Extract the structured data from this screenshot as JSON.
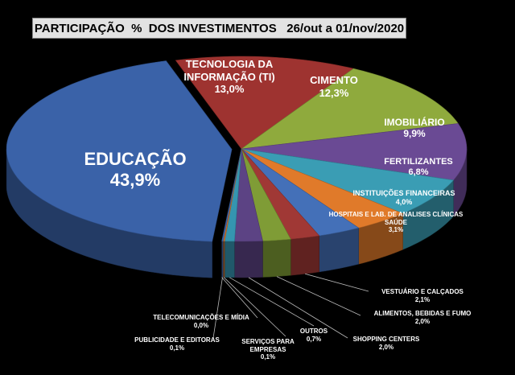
{
  "chart_data": {
    "type": "pie",
    "title": "PARTICIPAÇÃO  %  DOS INVESTIMENTOS   26/out a 01/nov/2020",
    "categories": [
      "EDUCAÇÃO",
      "TECNOLOGIA DA INFORMAÇÃO (TI)",
      "CIMENTO",
      "IMOBILIÁRIO",
      "FERTILIZANTES",
      "INSTITUIÇÕES FINANCEIRAS",
      "HOSPITAIS E LAB. DE ANALISES CLÍNICAS SAÚDE",
      "VESTUÁRIO E CALÇADOS",
      "ALIMENTOS, BEBIDAS E FUMO",
      "SHOPPING CENTERS",
      "OUTROS",
      "SERVIÇOS PARA EMPRESAS",
      "PUBLICIDADE E EDITORAS",
      "TELECOMUNICAÇÕES E MÍDIA"
    ],
    "values": [
      43.9,
      13.0,
      12.3,
      9.9,
      6.8,
      4.0,
      3.1,
      2.1,
      2.0,
      2.0,
      0.7,
      0.1,
      0.1,
      0.0
    ],
    "value_labels": [
      "43,9%",
      "13,0%",
      "12,3%",
      "9,9%",
      "6,8%",
      "4,0%",
      "3,1%",
      "2,1%",
      "2,0%",
      "2,0%",
      "0,7%",
      "0,1%",
      "0,1%",
      "0,0%"
    ],
    "colors": [
      "#3a62a8",
      "#9e3330",
      "#8faa3d",
      "#6a4a94",
      "#3a9db4",
      "#e07a2a",
      "#4470b8",
      "#a03835",
      "#7f9c36",
      "#5c4384",
      "#3595b0",
      "#d06f26",
      "#3d67ad",
      "#8f2f2d"
    ]
  }
}
